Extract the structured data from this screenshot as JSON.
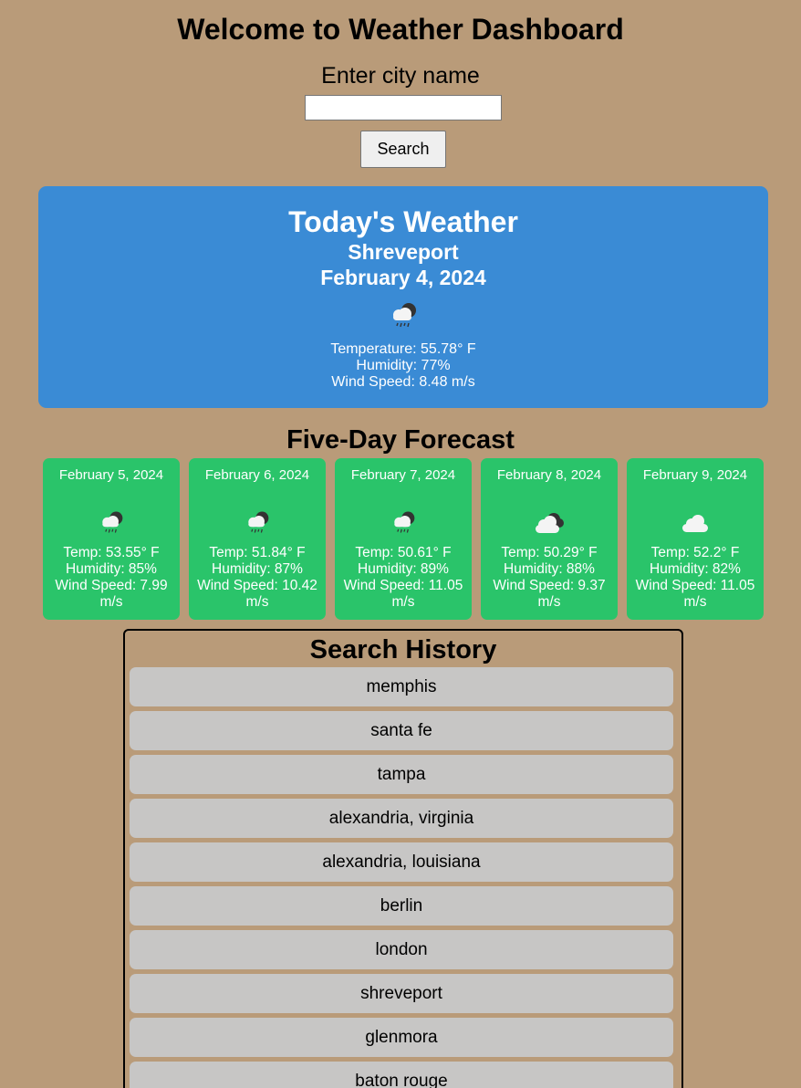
{
  "header": {
    "title": "Welcome to Weather Dashboard",
    "city_label": "Enter city name",
    "city_input_value": "",
    "search_label": "Search"
  },
  "today": {
    "heading": "Today's Weather",
    "city": "Shreveport",
    "date": "February 4, 2024",
    "icon": "rain-cloud-moon-icon",
    "temperature": "Temperature: 55.78° F",
    "humidity": "Humidity: 77%",
    "wind": "Wind Speed: 8.48 m/s"
  },
  "forecast": {
    "title": "Five-Day Forecast",
    "days": [
      {
        "date": "February 5, 2024",
        "icon": "rain-cloud-moon-icon",
        "temp": "Temp: 53.55° F",
        "humidity": "Humidity: 85%",
        "wind": "Wind Speed: 7.99 m/s"
      },
      {
        "date": "February 6, 2024",
        "icon": "rain-cloud-moon-icon",
        "temp": "Temp: 51.84° F",
        "humidity": "Humidity: 87%",
        "wind": "Wind Speed: 10.42 m/s"
      },
      {
        "date": "February 7, 2024",
        "icon": "rain-cloud-moon-icon",
        "temp": "Temp: 50.61° F",
        "humidity": "Humidity: 89%",
        "wind": "Wind Speed: 11.05 m/s"
      },
      {
        "date": "February 8, 2024",
        "icon": "broken-clouds-icon",
        "temp": "Temp: 50.29° F",
        "humidity": "Humidity: 88%",
        "wind": "Wind Speed: 9.37 m/s"
      },
      {
        "date": "February 9, 2024",
        "icon": "cloud-icon",
        "temp": "Temp: 52.2° F",
        "humidity": "Humidity: 82%",
        "wind": "Wind Speed: 11.05 m/s"
      }
    ]
  },
  "history": {
    "title": "Search History",
    "items": [
      "memphis",
      "santa fe",
      "tampa",
      "alexandria, virginia",
      "alexandria, louisiana",
      "berlin",
      "london",
      "shreveport",
      "glenmora",
      "baton rouge"
    ]
  }
}
